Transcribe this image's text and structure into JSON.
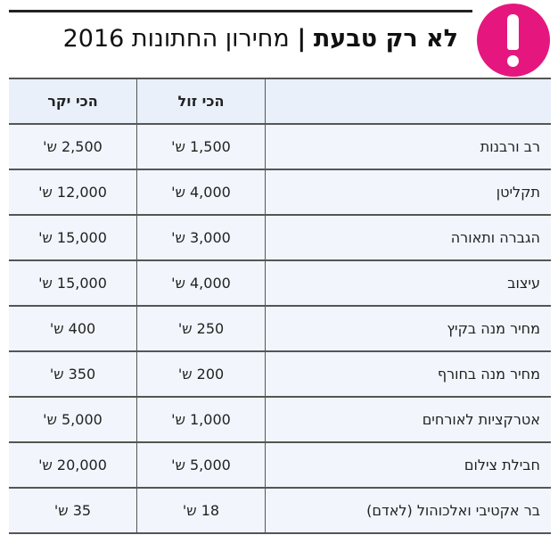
{
  "header": {
    "title_bold": "לא רק טבעת",
    "separator": "|",
    "title_light": "מחירון החתונות 2016",
    "badge_icon": "exclamation-icon",
    "badge_color": "#e5177f"
  },
  "table": {
    "columns": [
      "",
      "הכי זול",
      "הכי יקר"
    ],
    "rows": [
      {
        "item": "רב ורבנות",
        "cheapest": "1,500 ש'",
        "priciest": "2,500 ש'"
      },
      {
        "item": "תקליטן",
        "cheapest": "4,000 ש'",
        "priciest": "12,000 ש'"
      },
      {
        "item": "הגברה ותאורה",
        "cheapest": "3,000 ש'",
        "priciest": "15,000 ש'"
      },
      {
        "item": "עיצוב",
        "cheapest": "4,000 ש'",
        "priciest": "15,000 ש'"
      },
      {
        "item": "מחיר מנה בקיץ",
        "cheapest": "250 ש'",
        "priciest": "400 ש'"
      },
      {
        "item": "מחיר מנה בחורף",
        "cheapest": "200 ש'",
        "priciest": "350 ש'"
      },
      {
        "item": "אטרקציות לאורחים",
        "cheapest": "1,000 ש'",
        "priciest": "5,000 ש'"
      },
      {
        "item": "חבילת צילום",
        "cheapest": "5,000 ש'",
        "priciest": "20,000 ש'"
      },
      {
        "item": "בר אקטיבי ואלכוהול (לאדם)",
        "cheapest": "18 ש'",
        "priciest": "35 ש'"
      }
    ]
  }
}
